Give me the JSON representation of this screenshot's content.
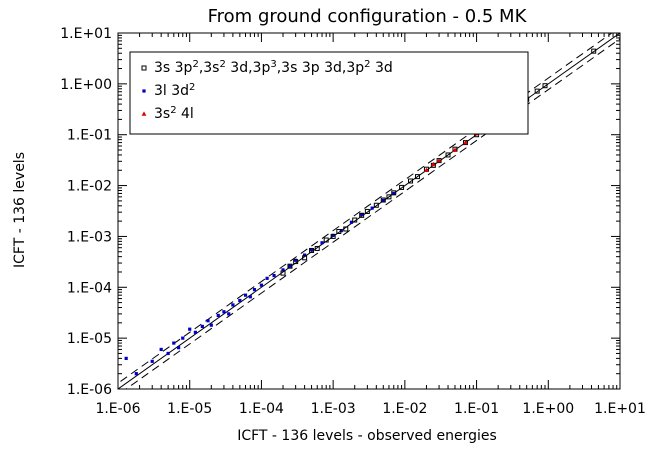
{
  "chart_data": {
    "type": "scatter",
    "title": "From ground configuration - 0.5 MK",
    "xlabel": "ICFT - 136 levels - observed energies",
    "ylabel": "ICFT - 136 levels",
    "xscale": "log",
    "yscale": "log",
    "xlim": [
      1e-06,
      10
    ],
    "ylim": [
      1e-06,
      10
    ],
    "x_ticks": [
      "1.E-06",
      "1.E-05",
      "1.E-04",
      "1.E-03",
      "1.E-02",
      "1.E-01",
      "1.E+00",
      "1.E+01"
    ],
    "y_ticks": [
      "1.E-06",
      "1.E-05",
      "1.E-04",
      "1.E-03",
      "1.E-02",
      "1.E-01",
      "1.E+00",
      "1.E+01"
    ],
    "legend_position": "top-left",
    "reference_lines": [
      {
        "style": "solid",
        "ratio": 1.0
      },
      {
        "style": "dashed",
        "ratio": 1.3
      },
      {
        "style": "dashed",
        "ratio": 0.77
      }
    ],
    "series": [
      {
        "name": "3s 3p²,3s² 3d,3p³,3s 3p 3d,3p² 3d",
        "legend_parts": [
          {
            "t": "3s 3p"
          },
          {
            "t": "2",
            "sup": true
          },
          {
            "t": ",3s"
          },
          {
            "t": "2",
            "sup": true
          },
          {
            "t": " 3d,3p"
          },
          {
            "t": "3",
            "sup": true
          },
          {
            "t": ",3s 3p 3d,3p"
          },
          {
            "t": "2",
            "sup": true
          },
          {
            "t": " 3d"
          }
        ],
        "color": "#000000",
        "marker": "open-square",
        "points": [
          [
            0.0002,
            0.00019
          ],
          [
            0.00025,
            0.00026
          ],
          [
            0.0003,
            0.00032
          ],
          [
            0.0004,
            0.00038
          ],
          [
            0.0005,
            0.00053
          ],
          [
            0.0006,
            0.00058
          ],
          [
            0.0008,
            0.00085
          ],
          [
            0.001,
            0.001
          ],
          [
            0.0012,
            0.00125
          ],
          [
            0.0015,
            0.0014
          ],
          [
            0.002,
            0.0021
          ],
          [
            0.0025,
            0.0026
          ],
          [
            0.003,
            0.0031
          ],
          [
            0.004,
            0.0041
          ],
          [
            0.005,
            0.0052
          ],
          [
            0.006,
            0.006
          ],
          [
            0.007,
            0.0072
          ],
          [
            0.009,
            0.0092
          ],
          [
            0.012,
            0.0123
          ],
          [
            0.015,
            0.015
          ],
          [
            0.02,
            0.021
          ],
          [
            0.025,
            0.025
          ],
          [
            0.03,
            0.031
          ],
          [
            0.04,
            0.04
          ],
          [
            0.05,
            0.052
          ],
          [
            0.07,
            0.07
          ],
          [
            0.1,
            0.1
          ],
          [
            0.13,
            0.13
          ],
          [
            0.18,
            0.185
          ],
          [
            0.25,
            0.25
          ],
          [
            0.35,
            0.36
          ],
          [
            0.5,
            0.5
          ],
          [
            0.7,
            0.72
          ],
          [
            0.9,
            0.92
          ],
          [
            4.3,
            4.4
          ]
        ]
      },
      {
        "name": "3l 3d²",
        "legend_parts": [
          {
            "t": "3l 3d"
          },
          {
            "t": "2",
            "sup": true
          }
        ],
        "color": "#0000cc",
        "marker": "filled-square",
        "points": [
          [
            1.3e-06,
            4e-06
          ],
          [
            1.8e-06,
            2e-06
          ],
          [
            3e-06,
            3.5e-06
          ],
          [
            4e-06,
            6e-06
          ],
          [
            5e-06,
            5e-06
          ],
          [
            6e-06,
            8e-06
          ],
          [
            7e-06,
            6.5e-06
          ],
          [
            8e-06,
            1e-05
          ],
          [
            1e-05,
            1.5e-05
          ],
          [
            1.2e-05,
            1.3e-05
          ],
          [
            1.5e-05,
            1.7e-05
          ],
          [
            1.8e-05,
            2.2e-05
          ],
          [
            2e-05,
            1.8e-05
          ],
          [
            2.5e-05,
            2.8e-05
          ],
          [
            3e-05,
            3.3e-05
          ],
          [
            3.5e-05,
            3e-05
          ],
          [
            4e-05,
            4.5e-05
          ],
          [
            5e-05,
            5.5e-05
          ],
          [
            6e-05,
            7e-05
          ],
          [
            7e-05,
            6.5e-05
          ],
          [
            8e-05,
            9e-05
          ],
          [
            0.0001,
            0.00011
          ],
          [
            0.00012,
            0.00015
          ],
          [
            0.00015,
            0.00017
          ],
          [
            0.0002,
            0.00022
          ],
          [
            0.00025,
            0.00026
          ],
          [
            0.0003,
            0.00034
          ],
          [
            0.0004,
            0.00043
          ],
          [
            0.0005,
            0.00055
          ],
          [
            0.0007,
            0.00075
          ],
          [
            0.001,
            0.00105
          ],
          [
            0.0013,
            0.0013
          ],
          [
            0.0018,
            0.0019
          ],
          [
            0.0025,
            0.0027
          ],
          [
            0.0035,
            0.0036
          ],
          [
            0.005,
            0.0051
          ],
          [
            0.007,
            0.007
          ]
        ]
      },
      {
        "name": "3s² 4l",
        "legend_parts": [
          {
            "t": "3s"
          },
          {
            "t": "2",
            "sup": true
          },
          {
            "t": " 4l"
          }
        ],
        "color": "#dd0000",
        "marker": "filled-triangle",
        "points": [
          [
            0.02,
            0.02
          ],
          [
            0.025,
            0.026
          ],
          [
            0.03,
            0.031
          ],
          [
            0.05,
            0.05
          ],
          [
            0.07,
            0.07
          ],
          [
            0.1,
            0.105
          ]
        ]
      }
    ]
  }
}
